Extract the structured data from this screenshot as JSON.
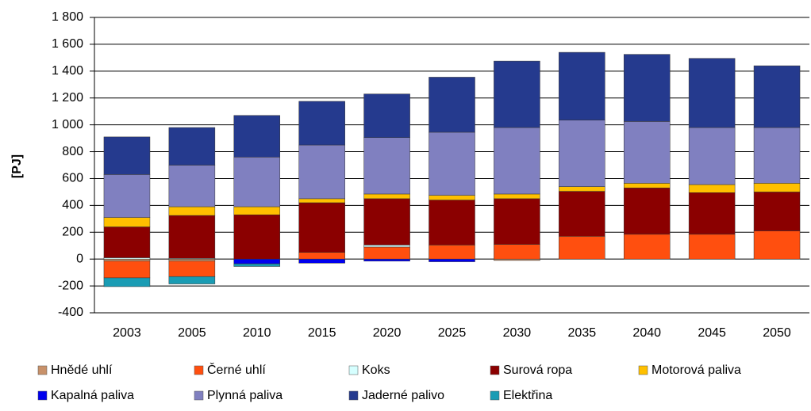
{
  "chart_data": {
    "type": "stacked_bar",
    "y_label": "[PJ]",
    "categories": [
      "2003",
      "2005",
      "2010",
      "2015",
      "2020",
      "2025",
      "2030",
      "2035",
      "2040",
      "2045",
      "2050"
    ],
    "series": [
      {
        "name": "Hnědé uhlí",
        "color": "#c8916a",
        "values": [
          -15,
          -15,
          0,
          0,
          0,
          0,
          -10,
          0,
          0,
          0,
          0
        ]
      },
      {
        "name": "Černé uhlí",
        "color": "#ff4f0f",
        "values": [
          -125,
          -115,
          0,
          50,
          90,
          105,
          110,
          170,
          185,
          185,
          210
        ]
      },
      {
        "name": "Koks",
        "color": "#d6ffff",
        "values": [
          10,
          5,
          0,
          0,
          15,
          0,
          0,
          0,
          0,
          0,
          0
        ]
      },
      {
        "name": "Surová ropa",
        "color": "#8b0000",
        "values": [
          230,
          320,
          330,
          370,
          345,
          335,
          340,
          335,
          345,
          310,
          290
        ]
      },
      {
        "name": "Motorová paliva",
        "color": "#ffc000",
        "values": [
          70,
          65,
          60,
          30,
          35,
          35,
          35,
          35,
          35,
          60,
          65
        ]
      },
      {
        "name": "Kapalná paliva",
        "color": "#0000ee",
        "values": [
          0,
          0,
          -35,
          -30,
          -15,
          -20,
          0,
          0,
          0,
          0,
          0
        ]
      },
      {
        "name": "Plynná paliva",
        "color": "#8080c0",
        "values": [
          320,
          310,
          370,
          400,
          420,
          470,
          495,
          495,
          460,
          425,
          415
        ]
      },
      {
        "name": "Jaderné palivo",
        "color": "#253a8e",
        "values": [
          280,
          280,
          310,
          325,
          325,
          410,
          495,
          505,
          500,
          515,
          460
        ]
      },
      {
        "name": "Elektřina",
        "color": "#1a9cb4",
        "values": [
          -65,
          -55,
          -20,
          0,
          0,
          0,
          0,
          0,
          0,
          0,
          0
        ]
      }
    ],
    "ylim": [
      -400,
      1800
    ],
    "yticks": [
      -400,
      -200,
      0,
      200,
      400,
      600,
      800,
      {
        "value": 1000,
        "label": "1 000"
      },
      {
        "value": 1200,
        "label": "1 200"
      },
      {
        "value": 1400,
        "label": "1 400"
      },
      {
        "value": 1600,
        "label": "1 600"
      },
      {
        "value": 1800,
        "label": "1 800"
      }
    ],
    "grid": true,
    "legend": "bottom"
  }
}
